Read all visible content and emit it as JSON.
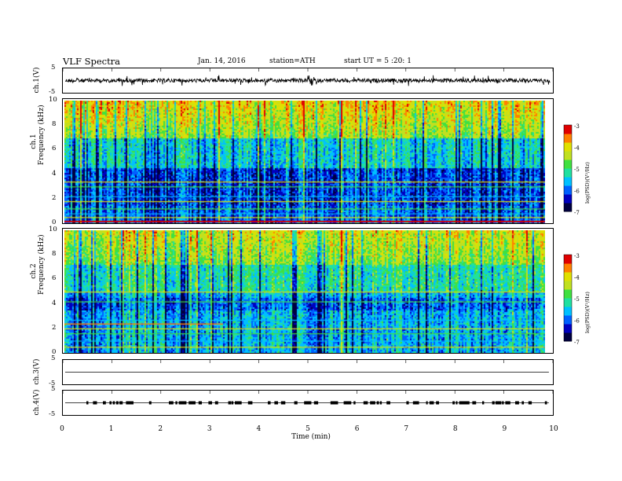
{
  "header": {
    "title": "VLF Spectra",
    "date": "Jan. 14, 2016",
    "station": "station=ATH",
    "start": "start UT =  5 :20: 1"
  },
  "colors": {
    "cmap": [
      "#000040",
      "#0000c0",
      "#0060ff",
      "#00c0ff",
      "#20e0a0",
      "#40e040",
      "#c0e020",
      "#e0e000",
      "#ff8000",
      "#e00000",
      "#ffffff"
    ]
  },
  "chart_data": [
    {
      "type": "line",
      "panel": "ch.1 waveform",
      "ylabel": "ch.1(V)",
      "yticks": [
        "5",
        "-5"
      ],
      "ylim": [
        -5,
        5
      ],
      "description_values": {
        "baseline": 0.0
      }
    },
    {
      "type": "heatmap",
      "panel": "ch.1 spectrogram",
      "ylabel_top": "ch.1",
      "ylabel": "Frequency (kHz)",
      "yticks": [
        "10",
        "8",
        "6",
        "4",
        "2",
        "0"
      ],
      "ylim": [
        0,
        10
      ],
      "xlim": [
        0,
        10
      ],
      "colorbar": {
        "label": "log(PSD)(V²/Hz)",
        "ticks": [
          "-3",
          "-4",
          "-5",
          "-6",
          "-7"
        ],
        "range": [
          -7,
          -3
        ]
      }
    },
    {
      "type": "heatmap",
      "panel": "ch.2 spectrogram",
      "ylabel_top": "ch.2",
      "ylabel": "Frequency (kHz)",
      "yticks": [
        "10",
        "8",
        "6",
        "4",
        "2",
        "0"
      ],
      "ylim": [
        0,
        10
      ],
      "xlim": [
        0,
        10
      ],
      "colorbar": {
        "label": "log(PSD)(V²/Hz)",
        "ticks": [
          "-3",
          "-4",
          "-5",
          "-6",
          "-7"
        ],
        "range": [
          -7,
          -3
        ]
      }
    },
    {
      "type": "line",
      "panel": "ch.3 waveform",
      "ylabel": "ch.3(V)",
      "yticks": [
        "5",
        "-5"
      ],
      "ylim": [
        -5,
        5
      ]
    },
    {
      "type": "line",
      "panel": "ch.4 waveform",
      "ylabel": "ch.4(V)",
      "yticks": [
        "5",
        "-5"
      ],
      "ylim": [
        -5,
        5
      ]
    }
  ],
  "xaxis": {
    "label": "Time (min)",
    "ticks": [
      "0",
      "1",
      "2",
      "3",
      "4",
      "5",
      "6",
      "7",
      "8",
      "9",
      "10"
    ]
  }
}
